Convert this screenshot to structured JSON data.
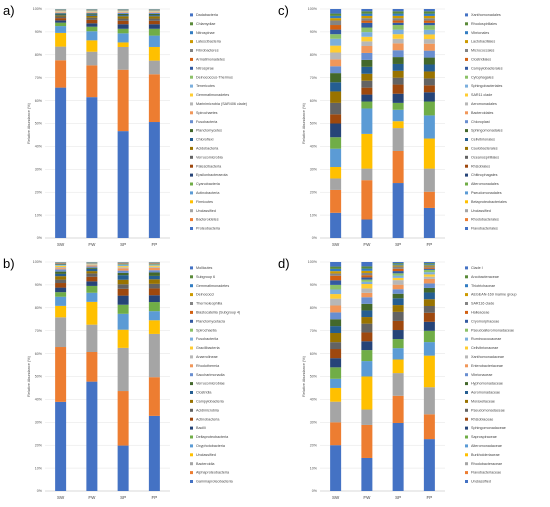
{
  "palette": [
    "#4472c4",
    "#ed7d31",
    "#a5a5a5",
    "#ffc000",
    "#5b9bd5",
    "#70ad47",
    "#264478",
    "#9e480e",
    "#636363",
    "#997300",
    "#255e91",
    "#43682b",
    "#698ed0",
    "#f1975a",
    "#b7b7b7",
    "#ffcd33",
    "#7cafdd",
    "#8cc168",
    "#335aa1",
    "#d26012",
    "#848484",
    "#cc9a00",
    "#327dc2",
    "#5a8a39"
  ],
  "chart_data": [
    {
      "type": "bar",
      "stacked": true,
      "panel_label": "a)",
      "categories": [
        "SW",
        "FW",
        "SP",
        "FP"
      ],
      "ylabel": "Relative Abundance (%)",
      "ylim": [
        0,
        100
      ],
      "yticks": [
        "0%",
        "10%",
        "20%",
        "30%",
        "40%",
        "50%",
        "60%",
        "70%",
        "80%",
        "90%",
        "100%"
      ],
      "legend": [
        "Dadabacteria",
        "Chlamydiae",
        "Nitrospinae",
        "Latescibacteria",
        "Fibrobacteres",
        "Armatimonadetes",
        "Nitrospirae",
        "Deinococcus-Thermus",
        "Tenericutes",
        "Gemmatimonadetes",
        "Marinimicrobia (SAR406 clade)",
        "Spirochaetes",
        "Fusobacteria",
        "Planctomycetes",
        "Chloroflexi",
        "Acidobacteria",
        "Verrucomicrobia",
        "Patescibacteria",
        "Epsilonbacteraeota",
        "Cyanobacteria",
        "Actinobacteria",
        "Firmicutes",
        "Unclassified",
        "Bacteroidetes",
        "Proteobacteria"
      ],
      "series_bottom_up": [
        "Proteobacteria",
        "Bacteroidetes",
        "Unclassified",
        "Firmicutes",
        "Actinobacteria",
        "Cyanobacteria",
        "Epsilonbacteraeota",
        "Patescibacteria",
        "Verrucomicrobia",
        "Acidobacteria",
        "Chloroflexi",
        "Planctomycetes",
        "Fusobacteria",
        "Spirochaetes",
        "Marinimicrobia (SAR406 clade)",
        "Gemmatimonadetes",
        "Tenericutes",
        "Deinococcus-Thermus",
        "Nitrospirae",
        "Armatimonadetes",
        "Fibrobacteres",
        "Latescibacteria",
        "Nitrospinae",
        "Chlamydiae",
        "Dadabacteria"
      ],
      "values": [
        [
          66,
          12,
          6,
          6,
          3,
          1.5,
          1,
          1,
          0.7,
          0.5,
          0.4,
          0.4,
          0.3,
          0.3,
          0.2,
          0.2,
          0.2,
          0.1,
          0.1,
          0.1,
          0.1,
          0.1,
          0.1,
          0.1,
          0.1
        ],
        [
          62,
          14,
          6,
          5,
          4,
          2,
          1.5,
          1.5,
          1,
          0.8,
          0.5,
          0.5,
          0.3,
          0.3,
          0.2,
          0.2,
          0.2,
          0.1,
          0.1,
          0.1,
          0.1,
          0.1,
          0.1,
          0.1,
          0.1
        ],
        [
          47,
          27,
          10,
          2,
          4,
          2,
          2,
          1.5,
          1,
          1,
          0.5,
          0.5,
          0.5,
          0.3,
          0.2,
          0.2,
          0.2,
          0.1,
          0.1,
          0.1,
          0.1,
          0.1,
          0.1,
          0.1,
          0.1
        ],
        [
          51,
          21,
          6,
          6,
          5,
          3,
          2,
          1.5,
          1,
          1,
          0.5,
          0.5,
          0.5,
          0.3,
          0.2,
          0.2,
          0.2,
          0.1,
          0.1,
          0.1,
          0.1,
          0.1,
          0.1,
          0.1,
          0.1
        ]
      ]
    },
    {
      "type": "bar",
      "stacked": true,
      "panel_label": "b)",
      "categories": [
        "SW",
        "FW",
        "SP",
        "FP"
      ],
      "ylabel": "Relative Abundance (%)",
      "ylim": [
        0,
        100
      ],
      "yticks": [
        "0%",
        "10%",
        "20%",
        "30%",
        "40%",
        "50%",
        "60%",
        "70%",
        "80%",
        "90%",
        "100%"
      ],
      "legend": [
        "Mollicutes",
        "Subgroup 6",
        "Gemmatimonadetes",
        "Deinococci",
        "Thermoleophilia",
        "Blastocatellia (Subgroup 4)",
        "Planctomycetacia",
        "Spirochaetia",
        "Fusobacteriia",
        "Gracilibacteria",
        "Anaerolineae",
        "Rhodothermia",
        "Saccharimonadia",
        "Verrucomicrobiae",
        "Clostridia",
        "Campylobacteria",
        "Acidimicrobiia",
        "Actinobacteria",
        "Bacilli",
        "Deltaproteobacteria",
        "Oxyphotobacteria",
        "Unclassified",
        "Bacteroidia",
        "Alphaproteobacteria",
        "Gammaproteobacteria"
      ],
      "series_bottom_up": [
        "Gammaproteobacteria",
        "Alphaproteobacteria",
        "Bacteroidia",
        "Unclassified",
        "Oxyphotobacteria",
        "Deltaproteobacteria",
        "Bacilli",
        "Actinobacteria",
        "Acidimicrobiia",
        "Campylobacteria",
        "Clostridia",
        "Verrucomicrobiae",
        "Saccharimonadia",
        "Rhodothermia",
        "Anaerolineae",
        "Gracilibacteria",
        "Fusobacteriia",
        "Spirochaetia",
        "Planctomycetacia",
        "Blastocatellia (Subgroup 4)",
        "Thermoleophilia",
        "Deinococci",
        "Gemmatimonadetes",
        "Subgroup 6",
        "Mollicutes"
      ],
      "values": [
        [
          39,
          24,
          13,
          5,
          4,
          2,
          2,
          2,
          1.5,
          1.5,
          1,
          1,
          1,
          0.5,
          0.5,
          0.5,
          0.3,
          0.3,
          0.3,
          0.2,
          0.2,
          0.1,
          0.1,
          0.1,
          0.1
        ],
        [
          48,
          13,
          12,
          10,
          4,
          3,
          2,
          2,
          1.5,
          1,
          1,
          0.5,
          0.5,
          0.5,
          0.3,
          0.2,
          0.2,
          0.1,
          0.1,
          0.1,
          0.1,
          0.1,
          0.1,
          0.1,
          0.1
        ],
        [
          20,
          24,
          19,
          8,
          7,
          4,
          4,
          3,
          2,
          2,
          2,
          1,
          1,
          1,
          0.5,
          0.5,
          0.5,
          0.3,
          0.2,
          0.2,
          0.2,
          0.1,
          0.1,
          0.1,
          0.1
        ],
        [
          33,
          17,
          19,
          6,
          4,
          4,
          3,
          3,
          2,
          2,
          1.5,
          1.5,
          1,
          1,
          0.5,
          0.5,
          0.3,
          0.3,
          0.2,
          0.2,
          0.2,
          0.1,
          0.1,
          0.1,
          0.1
        ]
      ]
    },
    {
      "type": "bar",
      "stacked": true,
      "panel_label": "c)",
      "categories": [
        "SW",
        "FW",
        "SP",
        "FP"
      ],
      "ylabel": "Relative Abundance (%)",
      "ylim": [
        0,
        100
      ],
      "yticks": [
        "0%",
        "10%",
        "20%",
        "30%",
        "40%",
        "50%",
        "60%",
        "70%",
        "80%",
        "90%",
        "100%"
      ],
      "legend": [
        "Xanthomonadales",
        "Rhodospirillales",
        "Vibrionales",
        "Lactobacillales",
        "Micrococcales",
        "Clostridiales",
        "Campylobacterales",
        "Cytophagales",
        "Sphingobacteriales",
        "SAR11 clade",
        "Aeromonadales",
        "Bacteroidales",
        "Chloroplast",
        "Sphingomonadales",
        "Cellvibrionales",
        "Caulobacterales",
        "Oceanospirillales",
        "Rhizobiales",
        "Chitinophagales",
        "Alteromonadales",
        "Pseudomonadales",
        "Betaproteobacteriales",
        "Unclassified",
        "Rhodobacterales",
        "Flavobacteriales"
      ],
      "series_bottom_up": [
        "Flavobacteriales",
        "Rhodobacterales",
        "Unclassified",
        "Betaproteobacteriales",
        "Pseudomonadales",
        "Alteromonadales",
        "Chitinophagales",
        "Rhizobiales",
        "Oceanospirillales",
        "Caulobacterales",
        "Cellvibrionales",
        "Sphingomonadales",
        "Chloroplast",
        "Bacteroidales",
        "Aeromonadales",
        "SAR11 clade",
        "Sphingobacteriales",
        "Cytophagales",
        "Campylobacterales",
        "Clostridiales",
        "Micrococcales",
        "Lactobacillales",
        "Vibrionales",
        "Rhodospirillales",
        "Xanthomonadales"
      ],
      "values": [
        [
          11,
          10,
          5,
          5,
          8,
          5,
          6,
          4,
          5,
          5,
          4,
          4,
          3,
          3,
          3,
          3,
          3,
          2,
          2,
          2,
          2,
          1,
          1,
          1,
          2
        ],
        [
          8,
          17,
          5,
          15,
          11,
          3,
          3,
          3,
          3,
          3,
          3,
          3,
          3,
          3,
          2,
          2,
          2,
          2,
          2,
          1,
          1,
          1,
          1,
          1,
          1
        ],
        [
          24,
          14,
          10,
          3,
          5,
          3,
          4,
          4,
          3,
          3,
          3,
          3,
          3,
          3,
          2,
          2,
          2,
          2,
          1,
          1,
          1,
          1,
          1,
          1,
          1
        ],
        [
          13,
          7,
          10,
          13,
          10,
          6,
          4,
          3,
          3,
          3,
          3,
          3,
          3,
          3,
          2,
          2,
          2,
          2,
          1,
          1,
          1,
          1,
          1,
          1,
          1
        ]
      ]
    },
    {
      "type": "bar",
      "stacked": true,
      "panel_label": "d)",
      "categories": [
        "SW",
        "FW",
        "SP",
        "FP"
      ],
      "ylabel": "Relative Abundance (%)",
      "ylim": [
        0,
        100
      ],
      "yticks": [
        "0%",
        "10%",
        "20%",
        "30%",
        "40%",
        "50%",
        "60%",
        "70%",
        "80%",
        "90%",
        "100%"
      ],
      "legend": [
        "Clade I",
        "Arcobacteraceae",
        "Thiotrichaceae",
        "AEGEAN-169 marine group",
        "SAR116 clade",
        "Halieaceae",
        "Cryomorphaceae",
        "Pseudoalteromonadaceae",
        "Ruminococcaceae",
        "Cellvibrionaceae",
        "Xanthomonadaceae",
        "Enterobacteriaceae",
        "Vibrionaceae",
        "Hyphomonadaceae",
        "Aeromonadaceae",
        "Moraxellaceae",
        "Pseudomonadaceae",
        "Rhizobiaceae",
        "Sphingomonadaceae",
        "Saprospiraceae",
        "Alteromonadaceae",
        "Burkholderiaceae",
        "Rhodobacteraceae",
        "Flavobacteriaceae",
        "Unclassified"
      ],
      "series_bottom_up": [
        "Unclassified",
        "Flavobacteriaceae",
        "Rhodobacteraceae",
        "Burkholderiaceae",
        "Alteromonadaceae",
        "Saprospiraceae",
        "Sphingomonadaceae",
        "Rhizobiaceae",
        "Pseudomonadaceae",
        "Moraxellaceae",
        "Aeromonadaceae",
        "Hyphomonadaceae",
        "Vibrionaceae",
        "Enterobacteriaceae",
        "Xanthomonadaceae",
        "Cellvibrionaceae",
        "Ruminococcaceae",
        "Pseudoalteromonadaceae",
        "Cryomorphaceae",
        "Halieaceae",
        "SAR116 clade",
        "AEGEAN-169 marine group",
        "Thiotrichaceae",
        "Arcobacteraceae",
        "Clade I"
      ],
      "values": [
        [
          20,
          10,
          9,
          6,
          4,
          5,
          4,
          4,
          3,
          4,
          3,
          3,
          3,
          3,
          3,
          2,
          2,
          2,
          2,
          2,
          1,
          1,
          1,
          1,
          2
        ],
        [
          15,
          15,
          7,
          15,
          7,
          5,
          4,
          4,
          4,
          3,
          3,
          3,
          3,
          2,
          2,
          2,
          1,
          1,
          1,
          1,
          1,
          1,
          1,
          1,
          2
        ],
        [
          30,
          12,
          10,
          6,
          5,
          4,
          4,
          4,
          4,
          3,
          3,
          2,
          2,
          2,
          2,
          1,
          1,
          1,
          1,
          1,
          1,
          0.5,
          0.5,
          0.5,
          0.5
        ],
        [
          23,
          11,
          12,
          14,
          6,
          5,
          4,
          4,
          3,
          3,
          3,
          2,
          2,
          2,
          1,
          1,
          1,
          1,
          0.5,
          0.5,
          0.5,
          0.5,
          0.5,
          0.5,
          0.5
        ]
      ]
    }
  ]
}
